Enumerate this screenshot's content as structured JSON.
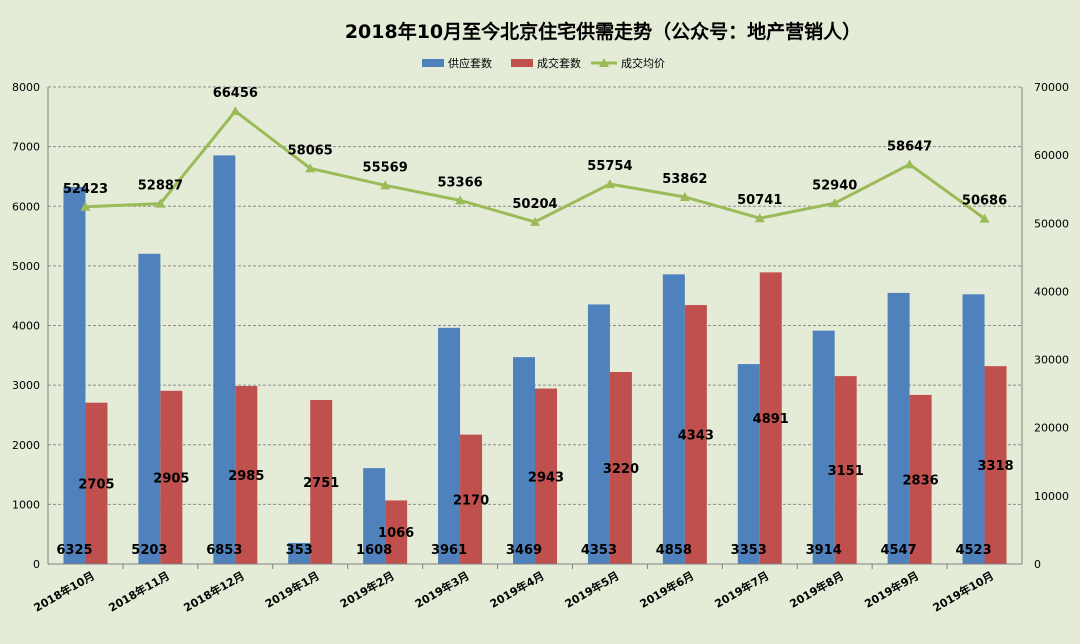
{
  "chart_data": {
    "type": "bar",
    "title": "2018年10月至今北京住宅供需走势（公众号：地产营销人）",
    "categories": [
      "2018年10月",
      "2018年11月",
      "2018年12月",
      "2019年1月",
      "2019年2月",
      "2019年3月",
      "2019年4月",
      "2019年5月",
      "2019年6月",
      "2019年7月",
      "2019年8月",
      "2019年9月",
      "2019年10月"
    ],
    "series": [
      {
        "name": "供应套数",
        "type": "bar",
        "axis": "left",
        "color": "#4f81bd",
        "values": [
          6325,
          5203,
          6853,
          353,
          1608,
          3961,
          3469,
          4353,
          4858,
          3353,
          3914,
          4547,
          4523
        ]
      },
      {
        "name": "成交套数",
        "type": "bar",
        "axis": "left",
        "color": "#c0504d",
        "values": [
          2705,
          2905,
          2985,
          2751,
          1066,
          2170,
          2943,
          3220,
          4343,
          4891,
          3151,
          2836,
          3318
        ]
      },
      {
        "name": "成交均价",
        "type": "line",
        "axis": "right",
        "color": "#9bbb59",
        "values": [
          52423,
          52887,
          66456,
          58065,
          55569,
          53366,
          50204,
          55754,
          53862,
          50741,
          52940,
          58647,
          50686
        ]
      }
    ],
    "y_left": {
      "min": 0,
      "max": 8000,
      "ticks": [
        0,
        1000,
        2000,
        3000,
        4000,
        5000,
        6000,
        7000,
        8000
      ]
    },
    "y_right": {
      "min": 0,
      "max": 70000,
      "ticks": [
        0,
        10000,
        20000,
        30000,
        40000,
        50000,
        60000,
        70000
      ]
    },
    "grid": true,
    "legend_position": "top-center"
  }
}
